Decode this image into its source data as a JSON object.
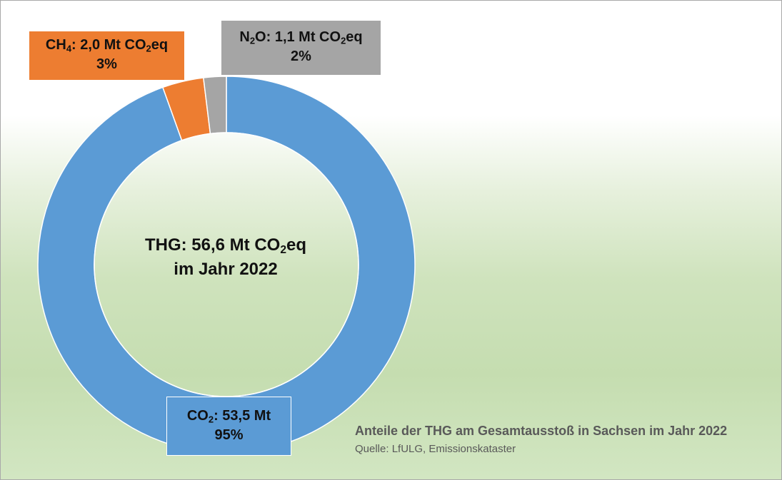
{
  "chart_data": {
    "type": "pie",
    "donut": true,
    "series": [
      {
        "name": "CO2",
        "value": 53.5,
        "percent": 95,
        "color": "#5b9bd5",
        "label_parts": [
          {
            "t": "CO"
          },
          {
            "t": "2",
            "sub": true
          },
          {
            "t": ": 53,5 Mt"
          }
        ],
        "percent_label": "95%"
      },
      {
        "name": "CH4",
        "value": 2.0,
        "percent": 3,
        "color": "#ed7d31",
        "label_parts": [
          {
            "t": "CH"
          },
          {
            "t": "4",
            "sub": true
          },
          {
            "t": ": 2,0 Mt CO"
          },
          {
            "t": "2",
            "sub": true
          },
          {
            "t": "eq"
          }
        ],
        "percent_label": "3%"
      },
      {
        "name": "N2O",
        "value": 1.1,
        "percent": 2,
        "color": "#a5a5a5",
        "label_parts": [
          {
            "t": "N"
          },
          {
            "t": "2",
            "sub": true
          },
          {
            "t": "O: 1,1 Mt CO"
          },
          {
            "t": "2",
            "sub": true
          },
          {
            "t": "eq"
          }
        ],
        "percent_label": "2%"
      }
    ],
    "total": 56.6,
    "center_label": {
      "line1_parts": [
        {
          "t": "THG: 56,6 Mt CO"
        },
        {
          "t": "2",
          "sub": true
        },
        {
          "t": "eq"
        }
      ],
      "line2": "im Jahr 2022"
    },
    "title": "Anteile der THG am Gesamtausstoß in Sachsen im Jahr 2022",
    "source": "Quelle: LfULG, Emissionskataster"
  }
}
